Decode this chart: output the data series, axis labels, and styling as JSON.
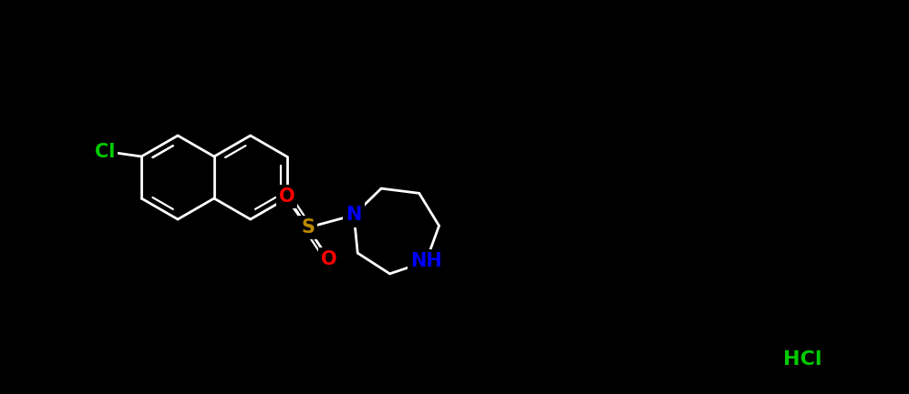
{
  "background_color": "#000000",
  "bond_color": "#ffffff",
  "atom_colors": {
    "Cl": "#00cc00",
    "O": "#ff0000",
    "S": "#bb8800",
    "N": "#0000ff",
    "NH": "#0000ff",
    "HCl": "#00cc00",
    "C": "#ffffff"
  },
  "figsize": [
    9.97,
    4.33
  ],
  "dpi": 100,
  "lw": 2.0,
  "inner_lw": 1.6,
  "fontsize": 15
}
